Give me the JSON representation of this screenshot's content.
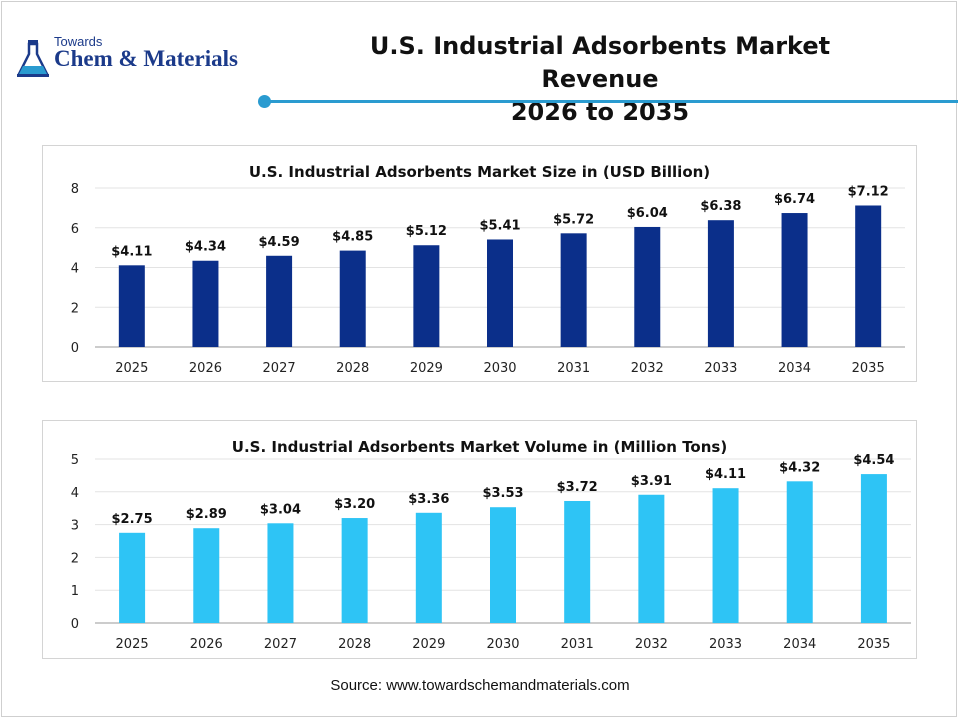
{
  "header": {
    "logo_small": "Towards",
    "logo_big": "Chem & Materials",
    "title_line1": "U.S. Industrial Adsorbents Market Revenue",
    "title_line2": "2026 to 2035",
    "accent_color": "#2a9bd0"
  },
  "source": "Source: www.towardschemandmaterials.com",
  "chart_data": [
    {
      "type": "bar",
      "title": "U.S. Industrial Adsorbents Market Size in (USD Billion)",
      "categories": [
        "2025",
        "2026",
        "2027",
        "2028",
        "2029",
        "2030",
        "2031",
        "2032",
        "2033",
        "2034",
        "2035"
      ],
      "values": [
        4.11,
        4.34,
        4.59,
        4.85,
        5.12,
        5.41,
        5.72,
        6.04,
        6.38,
        6.74,
        7.12
      ],
      "labels": [
        "$4.11",
        "$4.34",
        "$4.59",
        "$4.85",
        "$5.12",
        "$5.41",
        "$5.72",
        "$6.04",
        "$6.38",
        "$6.74",
        "$7.12"
      ],
      "ylim": [
        0,
        8
      ],
      "yticks": [
        0,
        2,
        4,
        6,
        8
      ],
      "grid": true,
      "color": "#0b2f8a"
    },
    {
      "type": "bar",
      "title": "U.S. Industrial Adsorbents Market Volume in (Million Tons)",
      "categories": [
        "2025",
        "2026",
        "2027",
        "2028",
        "2029",
        "2030",
        "2031",
        "2032",
        "2033",
        "2034",
        "2035"
      ],
      "values": [
        2.75,
        2.89,
        3.04,
        3.2,
        3.36,
        3.53,
        3.72,
        3.91,
        4.11,
        4.32,
        4.54
      ],
      "labels": [
        "$2.75",
        "$2.89",
        "$3.04",
        "$3.20",
        "$3.36",
        "$3.53",
        "$3.72",
        "$3.91",
        "$4.11",
        "$4.32",
        "$4.54"
      ],
      "ylim": [
        0,
        5
      ],
      "yticks": [
        0,
        1,
        2,
        3,
        4,
        5
      ],
      "grid": true,
      "color": "#2ec4f5"
    }
  ]
}
